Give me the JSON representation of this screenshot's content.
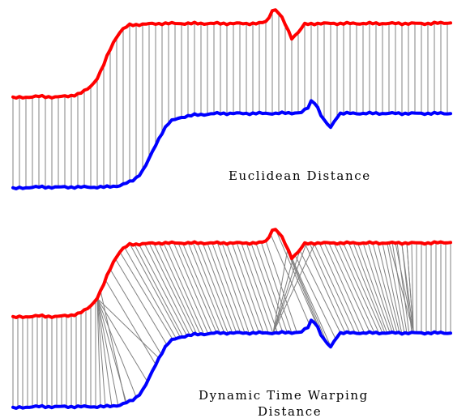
{
  "top_panel": {
    "caption": "Euclidean Distance"
  },
  "bottom_panel": {
    "caption_line1": "Dynamic Time Warping",
    "caption_line2": "Distance"
  },
  "colors": {
    "series_a": "#ff0000",
    "series_b": "#0000ff",
    "links": "#808080"
  }
}
